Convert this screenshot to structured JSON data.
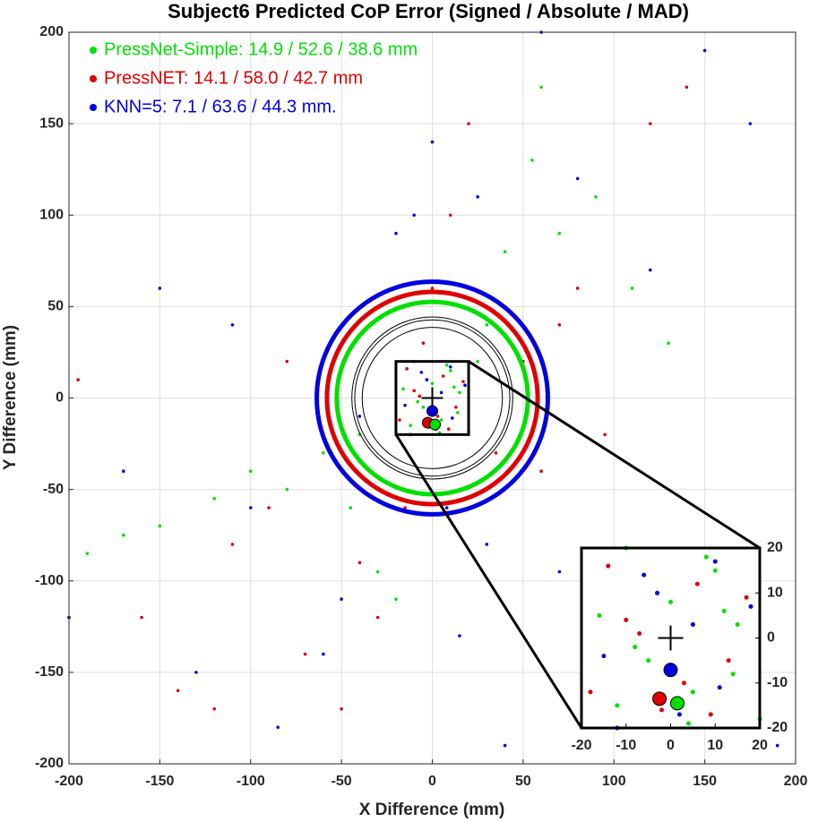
{
  "chart_data": {
    "type": "scatter",
    "title": "Subject6 Predicted CoP Error (Signed / Absolute / MAD)",
    "xlabel": "X Difference (mm)",
    "ylabel": "Y Difference (mm)",
    "xlim": [
      -200,
      200
    ],
    "ylim": [
      -200,
      200
    ],
    "xticks": [
      -200,
      -150,
      -100,
      -50,
      0,
      50,
      100,
      150,
      200
    ],
    "yticks": [
      -200,
      -150,
      -100,
      -50,
      0,
      50,
      100,
      150,
      200
    ],
    "grid": true,
    "legend": "upper left",
    "series": [
      {
        "name": "PressNet-Simple: 14.9 / 52.6 / 38.6 mm",
        "color": "#00e000",
        "x": [
          -190,
          -170,
          -150,
          -120,
          -100,
          -80,
          -60,
          -45,
          -30,
          -20,
          -10,
          -5,
          0,
          5,
          10,
          15,
          20,
          30,
          40,
          55,
          70,
          90,
          110,
          130,
          -12,
          8,
          -3,
          14,
          -16,
          4,
          -8,
          12,
          25,
          -40,
          60
        ],
        "y": [
          -85,
          -75,
          -70,
          -55,
          -40,
          -50,
          -30,
          -60,
          -95,
          -110,
          20,
          -5,
          8,
          -12,
          15,
          3,
          -18,
          40,
          80,
          130,
          90,
          110,
          60,
          30,
          -15,
          18,
          10,
          -8,
          5,
          -19,
          -2,
          6,
          20,
          -20,
          170
        ],
        "mean_x": 1.5,
        "mean_y": -14.5,
        "absolute": 52.6,
        "mad": 38.6
      },
      {
        "name": "PressNET: 14.1 / 58.0 / 42.7 mm",
        "color": "#e00000",
        "x": [
          -195,
          -160,
          -140,
          -110,
          -90,
          -70,
          -50,
          -30,
          -15,
          -5,
          0,
          10,
          20,
          35,
          50,
          70,
          95,
          120,
          140,
          -80,
          -40,
          -18,
          -10,
          -2,
          6,
          13,
          17,
          -14,
          3,
          9,
          -7,
          30,
          80,
          -120,
          60
        ],
        "y": [
          10,
          -120,
          -160,
          -80,
          -60,
          -140,
          -170,
          -120,
          -60,
          30,
          60,
          100,
          150,
          -30,
          20,
          40,
          -20,
          150,
          170,
          20,
          -90,
          -12,
          4,
          -16,
          12,
          -5,
          9,
          16,
          -10,
          -17,
          1,
          -50,
          60,
          -170,
          -40
        ],
        "mean_x": -2.5,
        "mean_y": -13.5,
        "absolute": 58.0,
        "mad": 42.7
      },
      {
        "name": "KNN=5: 7.1 / 63.6 / 44.3 mm.",
        "color": "#0000e0",
        "x": [
          -200,
          -170,
          -150,
          -130,
          -110,
          -85,
          -60,
          -40,
          -20,
          -10,
          0,
          8,
          15,
          25,
          40,
          60,
          80,
          100,
          120,
          150,
          175,
          190,
          -15,
          -6,
          2,
          11,
          18,
          -12,
          5,
          -3,
          10,
          -50,
          30,
          -100,
          70
        ],
        "y": [
          -120,
          -40,
          60,
          -150,
          40,
          -180,
          -140,
          -10,
          90,
          100,
          140,
          -60,
          -130,
          110,
          -190,
          200,
          120,
          -160,
          70,
          190,
          150,
          -190,
          -4,
          14,
          -17,
          -11,
          7,
          -20,
          3,
          10,
          17,
          -110,
          -80,
          -60,
          -95
        ],
        "mean_x": 0,
        "mean_y": -7.1,
        "absolute": 63.6,
        "mad": 44.3
      }
    ],
    "inset": {
      "xlim": [
        -20,
        20
      ],
      "ylim": [
        -20,
        20
      ],
      "xticks": [
        -20,
        -10,
        0,
        10,
        20
      ],
      "yticks": [
        -20,
        -10,
        0,
        10,
        20
      ]
    }
  }
}
